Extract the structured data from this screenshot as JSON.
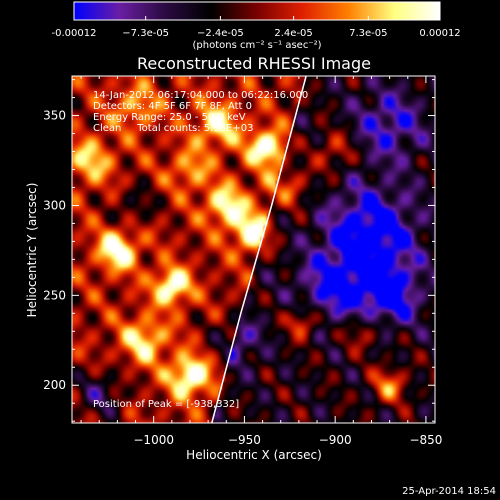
{
  "chart_data": {
    "type": "heatmap",
    "title": "Reconstructed RHESSI Image",
    "xlabel": "Heliocentric X (arcsec)",
    "ylabel": "Heliocentric Y (arcsec)",
    "xlim": [
      -1045,
      -845
    ],
    "ylim": [
      179,
      372
    ],
    "x_ticks": [
      -1000,
      -950,
      -900,
      -850
    ],
    "x_tick_labels": [
      "−1000",
      "−950",
      "−900",
      "−850"
    ],
    "y_ticks": [
      200,
      250,
      300,
      350
    ],
    "y_tick_labels": [
      "200",
      "250",
      "300",
      "350"
    ],
    "colorbar": {
      "min": -0.00012,
      "max": 0.00012,
      "ticks": [
        -0.00012,
        -7.3e-05,
        -2.4e-05,
        2.4e-05,
        7.3e-05,
        0.00012
      ],
      "tick_labels": [
        "-0.00012",
        "−7.3e-05",
        "−2.4e-05",
        "2.4e-05",
        "7.3e-05",
        "0.00012"
      ],
      "units_label": "(photons cm⁻² s⁻¹ asec⁻²)",
      "colors": [
        "#0000ff",
        "#6a1ea3",
        "#2a0a40",
        "#000000",
        "#7a0000",
        "#e02000",
        "#ff8000",
        "#ffff80",
        "#ffffff"
      ]
    },
    "annotations": {
      "time_range": "14-Jan-2012 06:17:04.000 to 06:22:16.000",
      "detectors": "Detectors: 4F 5F 6F 7F 8F, Att 0",
      "energy_range": "Energy Range: 25.0 - 50.0 keV",
      "method_counts": "Clean     Total counts: 5.96E+03",
      "peak_position": "Position of Peak = [-938,332]"
    },
    "peak": {
      "x": -938,
      "y": 332
    },
    "limb": {
      "points": [
        [
          -968,
          179
        ],
        [
          -952,
          240
        ],
        [
          -935,
          300
        ],
        [
          -916,
          372
        ]
      ]
    },
    "bright_sources": [
      {
        "x": -1020,
        "y": 275,
        "amp": 0.9,
        "sigma": 8
      },
      {
        "x": -990,
        "y": 255,
        "amp": 1.0,
        "sigma": 7
      },
      {
        "x": -980,
        "y": 205,
        "amp": 1.0,
        "sigma": 8
      },
      {
        "x": -1005,
        "y": 225,
        "amp": 0.7,
        "sigma": 9
      },
      {
        "x": -960,
        "y": 300,
        "amp": 0.8,
        "sigma": 8
      },
      {
        "x": -1035,
        "y": 325,
        "amp": 0.6,
        "sigma": 9
      },
      {
        "x": -938,
        "y": 332,
        "amp": 1.0,
        "sigma": 7
      },
      {
        "x": -945,
        "y": 285,
        "amp": 0.85,
        "sigma": 8
      },
      {
        "x": -925,
        "y": 310,
        "amp": 0.6,
        "sigma": 8
      },
      {
        "x": -965,
        "y": 345,
        "amp": 0.7,
        "sigma": 9
      },
      {
        "x": -900,
        "y": 330,
        "amp": 0.5,
        "sigma": 8
      },
      {
        "x": -918,
        "y": 235,
        "amp": 0.7,
        "sigma": 6
      },
      {
        "x": -870,
        "y": 200,
        "amp": 0.7,
        "sigma": 7
      },
      {
        "x": -885,
        "y": 230,
        "amp": 0.5,
        "sigma": 7
      },
      {
        "x": -1010,
        "y": 355,
        "amp": 0.5,
        "sigma": 9
      },
      {
        "x": -980,
        "y": 320,
        "amp": 0.5,
        "sigma": 8
      }
    ],
    "dark_sources": [
      {
        "x": -880,
        "y": 285,
        "amp": 0.9,
        "sigma": 18
      },
      {
        "x": -870,
        "y": 250,
        "amp": 0.8,
        "sigma": 12
      },
      {
        "x": -900,
        "y": 255,
        "amp": 0.7,
        "sigma": 14
      },
      {
        "x": -870,
        "y": 345,
        "amp": 0.6,
        "sigma": 14
      },
      {
        "x": -1030,
        "y": 195,
        "amp": 0.6,
        "sigma": 10
      },
      {
        "x": -955,
        "y": 225,
        "amp": 0.5,
        "sigma": 10
      },
      {
        "x": -1010,
        "y": 300,
        "amp": 0.4,
        "sigma": 8
      }
    ]
  },
  "footer": {
    "timestamp": "25-Apr-2014 18:54"
  }
}
